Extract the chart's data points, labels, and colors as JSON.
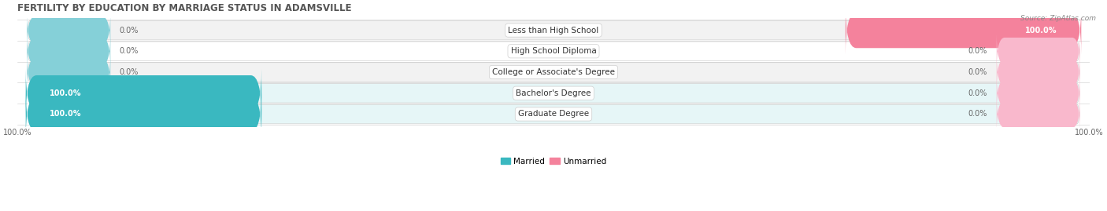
{
  "title": "FERTILITY BY EDUCATION BY MARRIAGE STATUS IN ADAMSVILLE",
  "source": "Source: ZipAtlas.com",
  "categories": [
    "Less than High School",
    "High School Diploma",
    "College or Associate's Degree",
    "Bachelor's Degree",
    "Graduate Degree"
  ],
  "married": [
    0.0,
    0.0,
    0.0,
    100.0,
    100.0
  ],
  "unmarried": [
    100.0,
    0.0,
    0.0,
    0.0,
    0.0
  ],
  "married_color": "#3ab8c0",
  "unmarried_color": "#f4829c",
  "married_stub_color": "#85d0d8",
  "unmarried_stub_color": "#f9b8cc",
  "row_bg_colors": [
    "#f0f0f0",
    "#ffffff",
    "#f0f0f0",
    "#e8f8f9",
    "#e8f8f9"
  ],
  "title_fontsize": 8.5,
  "label_fontsize": 7.5,
  "value_fontsize": 7.0,
  "tick_fontsize": 7.0,
  "legend_fontsize": 7.5,
  "source_fontsize": 6.5
}
